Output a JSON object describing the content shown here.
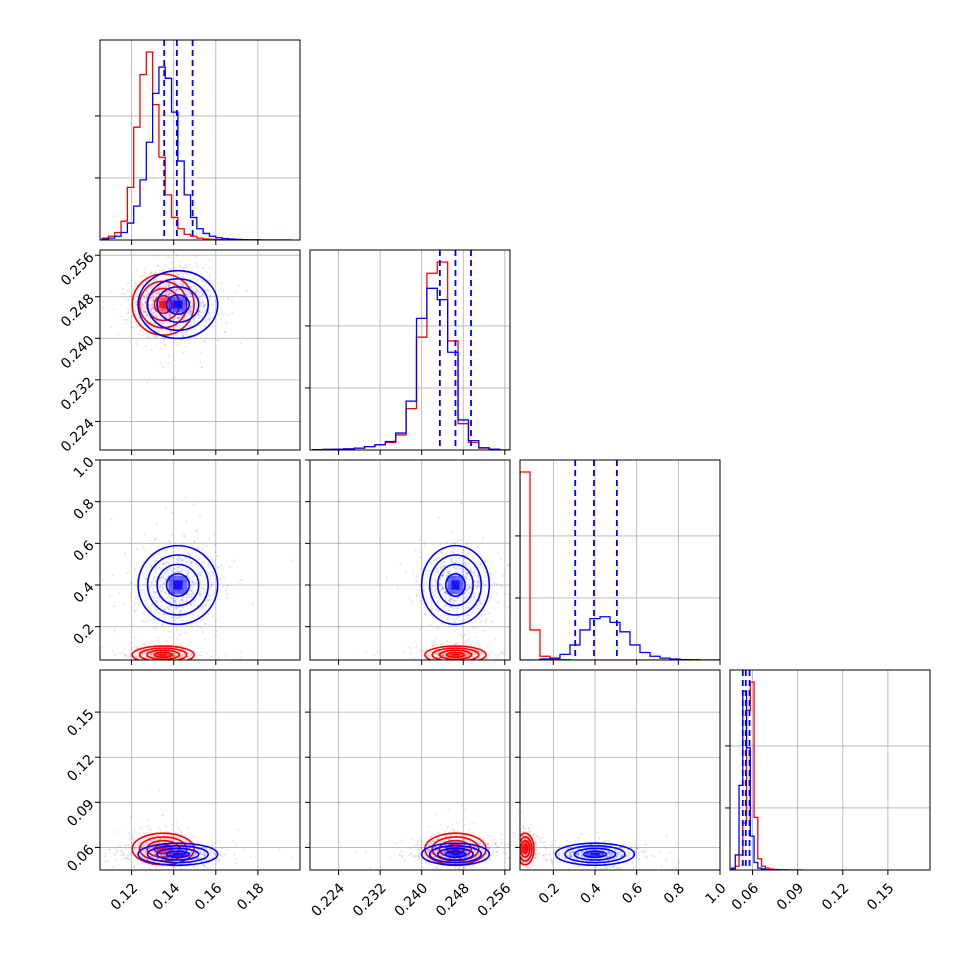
{
  "chart_data": {
    "type": "corner",
    "title": "",
    "colors": {
      "red_run": "#ff0000",
      "blue_run": "#0000ff",
      "grid": "#b0b0b0",
      "frame": "#000000"
    },
    "parameters": [
      {
        "index": 0,
        "range": [
          0.105,
          0.2
        ],
        "ticks": [
          0.12,
          0.14,
          0.16,
          0.18
        ],
        "tick_labels": [
          "0.12",
          "0.14",
          "0.16",
          "0.18"
        ]
      },
      {
        "index": 1,
        "range": [
          0.2185,
          0.257
        ],
        "ticks": [
          0.224,
          0.232,
          0.24,
          0.248,
          0.256
        ],
        "tick_labels": [
          "0.224",
          "0.232",
          "0.240",
          "0.248",
          "0.256"
        ]
      },
      {
        "index": 2,
        "range": [
          0.04,
          1.0
        ],
        "ticks": [
          0.2,
          0.4,
          0.6,
          0.8,
          1.0
        ],
        "tick_labels": [
          "0.2",
          "0.4",
          "0.6",
          "0.8",
          "1.0"
        ]
      },
      {
        "index": 3,
        "range": [
          0.045,
          0.178
        ],
        "ticks": [
          0.06,
          0.09,
          0.12,
          0.15
        ],
        "tick_labels": [
          "0.06",
          "0.09",
          "0.12",
          "0.15"
        ]
      }
    ],
    "diagonal_blue_quantiles": [
      [
        0.1355,
        0.1415,
        0.149
      ],
      [
        0.2435,
        0.2465,
        0.2495
      ],
      [
        0.305,
        0.395,
        0.505
      ],
      [
        0.0535,
        0.0555,
        0.058
      ]
    ],
    "histograms": [
      {
        "bins": [
          0.106,
          0.109,
          0.112,
          0.115,
          0.118,
          0.121,
          0.124,
          0.127,
          0.13,
          0.133,
          0.136,
          0.139,
          0.142,
          0.145,
          0.148,
          0.151,
          0.154,
          0.157,
          0.16,
          0.163,
          0.166,
          0.169,
          0.172,
          0.175,
          0.178,
          0.181,
          0.184,
          0.187,
          0.19,
          0.193,
          0.196
        ],
        "red": [
          0.01,
          0.02,
          0.04,
          0.1,
          0.28,
          0.6,
          0.88,
          1.0,
          0.72,
          0.44,
          0.24,
          0.12,
          0.06,
          0.03,
          0.02,
          0.01,
          0.005,
          0.003,
          0.002,
          0.001,
          0.001,
          0,
          0,
          0,
          0,
          0,
          0,
          0,
          0,
          0
        ],
        "blue": [
          0.005,
          0.01,
          0.02,
          0.04,
          0.09,
          0.18,
          0.32,
          0.52,
          0.78,
          0.92,
          0.86,
          0.68,
          0.42,
          0.24,
          0.12,
          0.06,
          0.035,
          0.02,
          0.012,
          0.008,
          0.005,
          0.003,
          0.002,
          0.001,
          0.001,
          0,
          0,
          0,
          0,
          0
        ]
      },
      {
        "bins": [
          0.219,
          0.221,
          0.223,
          0.225,
          0.227,
          0.229,
          0.231,
          0.233,
          0.235,
          0.237,
          0.239,
          0.241,
          0.243,
          0.245,
          0.247,
          0.249,
          0.251,
          0.253,
          0.255,
          0.257
        ],
        "red": [
          0.002,
          0.003,
          0.004,
          0.006,
          0.01,
          0.018,
          0.028,
          0.04,
          0.08,
          0.22,
          0.6,
          0.94,
          1.0,
          0.58,
          0.14,
          0.04,
          0.01,
          0.003,
          0
        ],
        "blue": [
          0.002,
          0.003,
          0.004,
          0.006,
          0.01,
          0.018,
          0.028,
          0.045,
          0.09,
          0.26,
          0.7,
          0.86,
          0.8,
          0.52,
          0.16,
          0.05,
          0.012,
          0.004,
          0
        ]
      },
      {
        "bins": [
          0.04,
          0.088,
          0.136,
          0.184,
          0.232,
          0.28,
          0.328,
          0.376,
          0.424,
          0.472,
          0.52,
          0.568,
          0.616,
          0.664,
          0.712,
          0.76,
          0.808,
          0.856,
          0.904,
          0.952,
          1.0
        ],
        "red": [
          1.0,
          0.16,
          0.02,
          0.005,
          0.002,
          0,
          0,
          0,
          0,
          0,
          0,
          0,
          0,
          0,
          0,
          0,
          0,
          0,
          0,
          0
        ],
        "blue": [
          0,
          0,
          0.005,
          0.01,
          0.03,
          0.08,
          0.16,
          0.22,
          0.23,
          0.2,
          0.15,
          0.08,
          0.04,
          0.02,
          0.01,
          0.005,
          0.002,
          0.001,
          0,
          0
        ]
      },
      {
        "bins": [
          0.046,
          0.0485,
          0.051,
          0.0535,
          0.056,
          0.0585,
          0.061,
          0.0635,
          0.066,
          0.0685,
          0.071,
          0.0735,
          0.076,
          0.0785,
          0.081,
          0.0835,
          0.086,
          0.0885,
          0.091,
          0.0935
        ],
        "red": [
          0.005,
          0.02,
          0.08,
          0.25,
          0.85,
          1.0,
          0.28,
          0.06,
          0.02,
          0.01,
          0.005,
          0.003,
          0.002,
          0.001,
          0.001,
          0,
          0,
          0,
          0
        ],
        "blue": [
          0.01,
          0.08,
          0.45,
          0.95,
          0.65,
          0.18,
          0.04,
          0.01,
          0.005,
          0.002,
          0.001,
          0,
          0,
          0,
          0,
          0,
          0,
          0,
          0
        ]
      }
    ],
    "samples": {
      "red": {
        "mean": [
          0.135,
          0.2465,
          0.065,
          0.059
        ],
        "std": [
          0.007,
          0.0028,
          0.02,
          0.005
        ]
      },
      "blue": {
        "mean": [
          0.142,
          0.2465,
          0.4,
          0.0555
        ],
        "std": [
          0.009,
          0.0031,
          0.09,
          0.0035
        ]
      }
    }
  }
}
